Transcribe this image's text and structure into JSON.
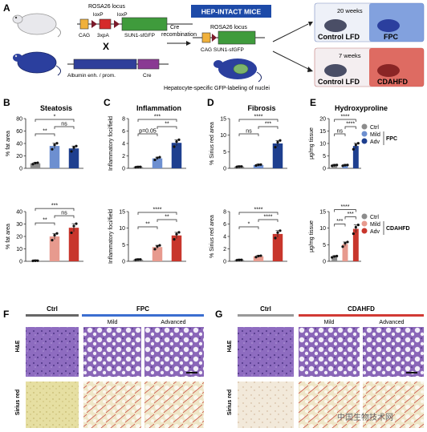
{
  "panel_labels": {
    "A": "A",
    "B": "B",
    "C": "C",
    "D": "D",
    "E": "E",
    "F": "F",
    "G": "G"
  },
  "schematic": {
    "locus": "ROSA26 locus",
    "loxp1": "loxP",
    "loxp2": "loxP",
    "cag": "CAG",
    "stop": "3xpA",
    "reporter": "SUN1-sfGFP",
    "cross": "X",
    "albumin": "Albumin enh. / prom.",
    "cre": "Cre",
    "cre_recombination": "Cre\nrecombination",
    "hep_title": "HEP-INTACT MICE",
    "locus2": "ROSA26 locus",
    "recomb_construct": "CAG SUN1-sfGFP",
    "caption": "Hepatocyte-specific GFP-labeling of nuclei",
    "top_weeks": "20 weeks",
    "top_ctrl": "Control LFD",
    "top_diet": "FPC",
    "bot_weeks": "7 weeks",
    "bot_ctrl": "Control LFD",
    "bot_diet": "CDAHFD"
  },
  "legend": {
    "fpc": {
      "ctrl": "Ctrl",
      "mild": "Mild",
      "adv": "Adv",
      "model": "FPC"
    },
    "cdahfd": {
      "ctrl": "Ctrl",
      "mild": "Mild",
      "adv": "Adv",
      "model": "CDAHFD"
    }
  },
  "histology": {
    "F": {
      "ctrl": "Ctrl",
      "model": "FPC",
      "mild": "Mild",
      "advanced": "Advanced",
      "row1": "H&E",
      "row2": "Sirius red"
    },
    "G": {
      "ctrl": "Ctrl",
      "model": "CDAHFD",
      "mild": "Mild",
      "advanced": "Advanced",
      "row1": "H&E",
      "row2": "Sirius red"
    }
  },
  "watermark": "中国生物技术网",
  "colors": {
    "ctrl": "#8c8c8c",
    "fpc_mild": "#6d8fd0",
    "fpc_adv": "#1e3f8f",
    "cd_mild": "#e79a8e",
    "cd_adv": "#c8362c",
    "he": "#8a63b8",
    "sirius": "#e9e3a8"
  },
  "chart_data": [
    {
      "id": "B-top",
      "type": "bar",
      "title": "Steatosis",
      "ylabel": "% fat area",
      "ylim": [
        0,
        80
      ],
      "yticks": [
        0,
        20,
        40,
        60,
        80
      ],
      "series": [
        {
          "name": "Ctrl",
          "values": [
            8
          ]
        },
        {
          "name": "Mild",
          "values": [
            36
          ]
        },
        {
          "name": "Adv",
          "values": [
            32
          ]
        }
      ],
      "annotations": [
        "**",
        "*",
        "ns"
      ]
    },
    {
      "id": "B-bot",
      "type": "bar",
      "ylabel": "% fat area",
      "ylim": [
        0,
        40
      ],
      "yticks": [
        0,
        10,
        20,
        30,
        40
      ],
      "series": [
        {
          "name": "Ctrl",
          "values": [
            0.4
          ]
        },
        {
          "name": "Mild",
          "values": [
            20
          ]
        },
        {
          "name": "Adv",
          "values": [
            27
          ]
        }
      ],
      "annotations": [
        "**",
        "***",
        "ns"
      ]
    },
    {
      "id": "C-top",
      "type": "bar",
      "title": "Inflammation",
      "ylabel": "Inflammatory foci/field",
      "ylim": [
        0,
        8
      ],
      "yticks": [
        0,
        2,
        4,
        6,
        8
      ],
      "series": [
        {
          "name": "Ctrl",
          "values": [
            0.2
          ]
        },
        {
          "name": "Mild",
          "values": [
            1.6
          ]
        },
        {
          "name": "Adv",
          "values": [
            4.1
          ]
        }
      ],
      "annotations": [
        "p=0.05",
        "***",
        "**"
      ]
    },
    {
      "id": "C-bot",
      "type": "bar",
      "ylabel": "Inflammatory foci/field",
      "ylim": [
        0,
        15
      ],
      "yticks": [
        0,
        5,
        10,
        15
      ],
      "series": [
        {
          "name": "Ctrl",
          "values": [
            0.5
          ]
        },
        {
          "name": "Mild",
          "values": [
            4.3
          ]
        },
        {
          "name": "Adv",
          "values": [
            7.8
          ]
        }
      ],
      "annotations": [
        "**",
        "****",
        "**"
      ]
    },
    {
      "id": "D-top",
      "type": "bar",
      "title": "Fibrosis",
      "ylabel": "% Sirius red area",
      "ylim": [
        0,
        15
      ],
      "yticks": [
        0,
        5,
        10,
        15
      ],
      "series": [
        {
          "name": "Ctrl",
          "values": [
            0.5
          ]
        },
        {
          "name": "Mild",
          "values": [
            1
          ]
        },
        {
          "name": "Adv",
          "values": [
            7.5
          ]
        }
      ],
      "annotations": [
        "ns",
        "****",
        "***"
      ]
    },
    {
      "id": "D-bot",
      "type": "bar",
      "ylabel": "% Sirius red area",
      "ylim": [
        0,
        8
      ],
      "yticks": [
        0,
        2,
        4,
        6,
        8
      ],
      "series": [
        {
          "name": "Ctrl",
          "values": [
            0.2
          ]
        },
        {
          "name": "Mild",
          "values": [
            0.8
          ]
        },
        {
          "name": "Adv",
          "values": [
            4.4
          ]
        }
      ],
      "annotations": [
        "*",
        "****",
        "****"
      ]
    },
    {
      "id": "E-top",
      "type": "bar",
      "title": "Hydroxyproline",
      "ylabel": "μg/mg tissue",
      "ylim": [
        0,
        20
      ],
      "yticks": [
        0,
        5,
        10,
        15,
        20
      ],
      "series": [
        {
          "name": "Ctrl",
          "values": [
            1.2
          ]
        },
        {
          "name": "Mild",
          "values": [
            1.2
          ]
        },
        {
          "name": "Adv",
          "values": [
            9
          ]
        }
      ],
      "annotations": [
        "ns",
        "****",
        "****"
      ]
    },
    {
      "id": "E-bot",
      "type": "bar",
      "ylabel": "μg/mg tissue",
      "ylim": [
        0,
        15
      ],
      "yticks": [
        0,
        5,
        10,
        15
      ],
      "series": [
        {
          "name": "Ctrl",
          "values": [
            1.4
          ]
        },
        {
          "name": "Mild",
          "values": [
            5.2
          ]
        },
        {
          "name": "Adv",
          "values": [
            9.8
          ]
        }
      ],
      "annotations": [
        "***",
        "****",
        "***"
      ]
    }
  ]
}
